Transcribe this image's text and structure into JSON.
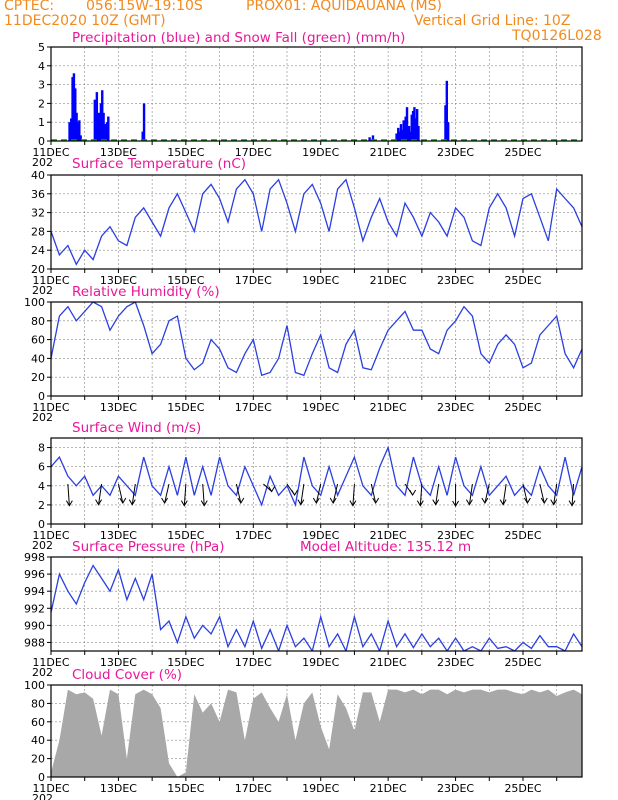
{
  "header": {
    "line1_left": "CPTEC:",
    "line1_coords": "056:15W-19:10S",
    "line1_station": "PROX01: AQUIDAUANA (MS)",
    "line2_left": "11DEC2020 10Z (GMT)",
    "line2_right": "Vertical Grid Line: 10Z",
    "line3_right": "TQ0126L028"
  },
  "colors": {
    "header": "#f28a1e",
    "title": "#e8189a",
    "precip": "#0000ff",
    "snow": "#00a000",
    "line": "#2b3fe0",
    "cloud": "#a8a8a8"
  },
  "x_axis": {
    "labels": [
      "11DEC",
      "13DEC",
      "15DEC",
      "17DEC",
      "19DEC",
      "21DEC",
      "23DEC",
      "25DEC"
    ],
    "cutoff_label": "202"
  },
  "chart_data": [
    {
      "type": "bar",
      "title": "Precipitation (blue) and Snow Fall (green) (mm/h)",
      "ylim": [
        0,
        5
      ],
      "yticks": [
        0,
        1,
        2,
        3,
        4,
        5
      ],
      "series": [
        {
          "name": "Precipitation",
          "x": [
            0.55,
            0.6,
            0.64,
            0.68,
            0.72,
            0.76,
            0.8,
            0.84,
            0.88,
            1.3,
            1.36,
            1.42,
            1.48,
            1.52,
            1.56,
            1.6,
            1.66,
            1.7,
            2.72,
            2.76,
            9.45,
            9.55,
            10.25,
            10.3,
            10.34,
            10.38,
            10.42,
            10.46,
            10.52,
            10.56,
            10.62,
            10.66,
            10.7,
            10.74,
            10.78,
            10.82,
            10.86,
            10.9,
            11.7,
            11.74,
            11.78
          ],
          "values": [
            1.0,
            1.2,
            3.4,
            3.6,
            2.8,
            1.5,
            1.0,
            1.1,
            0.3,
            2.2,
            2.6,
            1.5,
            2.0,
            2.7,
            1.5,
            0.9,
            1.0,
            1.3,
            0.5,
            2.0,
            0.2,
            0.3,
            0.4,
            0.7,
            0.5,
            0.9,
            0.6,
            1.1,
            1.3,
            1.8,
            0.8,
            0.5,
            1.4,
            1.6,
            1.8,
            1.2,
            1.7,
            0.8,
            1.9,
            3.2,
            1.0
          ]
        },
        {
          "name": "Snow Fall",
          "values": [
            0
          ]
        }
      ]
    },
    {
      "type": "line",
      "title": "Surface Temperature (nC)",
      "ylim": [
        20,
        40
      ],
      "yticks": [
        20,
        24,
        28,
        32,
        36,
        40
      ],
      "x": [
        0,
        0.25,
        0.5,
        0.75,
        1.0,
        1.25,
        1.5,
        1.75,
        2.0,
        2.25,
        2.5,
        2.75,
        3.0,
        3.25,
        3.5,
        3.75,
        4.0,
        4.25,
        4.5,
        4.75,
        5.0,
        5.25,
        5.5,
        5.75,
        6.0,
        6.25,
        6.5,
        6.75,
        7.0,
        7.25,
        7.5,
        7.75,
        8.0,
        8.25,
        8.5,
        8.75,
        9.0,
        9.25,
        9.5,
        9.75,
        10.0,
        10.25,
        10.5,
        10.75,
        11.0,
        11.25,
        11.5,
        11.75,
        12.0,
        12.25,
        12.5,
        12.75,
        13.0,
        13.25,
        13.5,
        13.75,
        14.0,
        14.25,
        14.5,
        14.75,
        15.0,
        15.25,
        15.5,
        15.75
      ],
      "values": [
        28,
        23,
        25,
        21,
        24,
        22,
        27,
        29,
        26,
        25,
        31,
        33,
        30,
        27,
        33,
        36,
        32,
        28,
        36,
        38,
        35,
        30,
        37,
        39,
        36,
        28,
        37,
        39,
        34,
        28,
        36,
        38,
        34,
        28,
        37,
        39,
        33,
        26,
        31,
        35,
        30,
        27,
        34,
        31,
        27,
        32,
        30,
        27,
        33,
        31,
        26,
        25,
        33,
        36,
        33,
        27,
        35,
        36,
        31,
        26,
        37,
        35,
        33,
        29
      ],
      "series": [
        {
          "name": ""
        }
      ]
    },
    {
      "type": "line",
      "title": "Relative Humidity (%)",
      "ylim": [
        0,
        100
      ],
      "yticks": [
        0,
        20,
        40,
        60,
        80,
        100
      ],
      "x": [
        0,
        0.25,
        0.5,
        0.75,
        1.0,
        1.25,
        1.5,
        1.75,
        2.0,
        2.25,
        2.5,
        2.75,
        3.0,
        3.25,
        3.5,
        3.75,
        4.0,
        4.25,
        4.5,
        4.75,
        5.0,
        5.25,
        5.5,
        5.75,
        6.0,
        6.25,
        6.5,
        6.75,
        7.0,
        7.25,
        7.5,
        7.75,
        8.0,
        8.25,
        8.5,
        8.75,
        9.0,
        9.25,
        9.5,
        9.75,
        10.0,
        10.25,
        10.5,
        10.75,
        11.0,
        11.25,
        11.5,
        11.75,
        12.0,
        12.25,
        12.5,
        12.75,
        13.0,
        13.25,
        13.5,
        13.75,
        14.0,
        14.25,
        14.5,
        14.75,
        15.0,
        15.25,
        15.5,
        15.75
      ],
      "values": [
        40,
        85,
        95,
        80,
        90,
        100,
        95,
        70,
        85,
        95,
        100,
        75,
        45,
        55,
        80,
        85,
        40,
        28,
        35,
        60,
        50,
        30,
        25,
        45,
        60,
        22,
        25,
        40,
        75,
        25,
        22,
        45,
        65,
        30,
        25,
        55,
        70,
        30,
        28,
        50,
        70,
        80,
        90,
        70,
        70,
        50,
        45,
        70,
        80,
        95,
        85,
        45,
        35,
        55,
        65,
        55,
        30,
        35,
        65,
        75,
        85,
        45,
        30,
        50
      ],
      "series": [
        {
          "name": ""
        }
      ]
    },
    {
      "type": "line",
      "title": "Surface Wind (m/s)",
      "ylim": [
        0,
        9
      ],
      "yticks": [
        0,
        2,
        4,
        6,
        8
      ],
      "x": [
        0,
        0.25,
        0.5,
        0.75,
        1.0,
        1.25,
        1.5,
        1.75,
        2.0,
        2.25,
        2.5,
        2.75,
        3.0,
        3.25,
        3.5,
        3.75,
        4.0,
        4.25,
        4.5,
        4.75,
        5.0,
        5.25,
        5.5,
        5.75,
        6.0,
        6.25,
        6.5,
        6.75,
        7.0,
        7.25,
        7.5,
        7.75,
        8.0,
        8.25,
        8.5,
        8.75,
        9.0,
        9.25,
        9.5,
        9.75,
        10.0,
        10.25,
        10.5,
        10.75,
        11.0,
        11.25,
        11.5,
        11.75,
        12.0,
        12.25,
        12.5,
        12.75,
        13.0,
        13.25,
        13.5,
        13.75,
        14.0,
        14.25,
        14.5,
        14.75,
        15.0,
        15.25,
        15.5,
        15.75
      ],
      "values": [
        6,
        7,
        5,
        4,
        5,
        3,
        4,
        3,
        5,
        4,
        3,
        7,
        4,
        3,
        6,
        3,
        7,
        3,
        6,
        3,
        7,
        4,
        3,
        6,
        4,
        2,
        5,
        3,
        4,
        2,
        7,
        4,
        3,
        6,
        3,
        5,
        7,
        4,
        3,
        6,
        8,
        4,
        3,
        7,
        4,
        3,
        6,
        3,
        7,
        4,
        3,
        6,
        3,
        4,
        5,
        3,
        4,
        3,
        6,
        4,
        3,
        7,
        3,
        6
      ],
      "arrows": {
        "x": [
          0.5,
          1.5,
          2.0,
          2.5,
          3.5,
          4.0,
          4.5,
          5.5,
          6.3,
          7.0,
          7.5,
          8.0,
          8.5,
          9.0,
          9.5,
          10.5,
          11.0,
          11.5,
          12.0,
          12.5,
          13.0,
          13.5,
          14.0,
          14.5,
          15.0,
          15.5
        ],
        "dir_deg": [
          350,
          20,
          330,
          20,
          30,
          10,
          350,
          330,
          290,
          300,
          20,
          30,
          30,
          10,
          330,
          300,
          10,
          20,
          0,
          20,
          30,
          20,
          330,
          330,
          20,
          10
        ]
      },
      "series": [
        {
          "name": ""
        }
      ]
    },
    {
      "type": "line",
      "title": "Surface Pressure (hPa)",
      "model_altitude_label": "Model Altitude: 135.12 m",
      "ylim": [
        987,
        998
      ],
      "yticks": [
        988,
        990,
        992,
        994,
        996,
        998
      ],
      "x": [
        0,
        0.25,
        0.5,
        0.75,
        1.0,
        1.25,
        1.5,
        1.75,
        2.0,
        2.25,
        2.5,
        2.75,
        3.0,
        3.25,
        3.5,
        3.75,
        4.0,
        4.25,
        4.5,
        4.75,
        5.0,
        5.25,
        5.5,
        5.75,
        6.0,
        6.25,
        6.5,
        6.75,
        7.0,
        7.25,
        7.5,
        7.75,
        8.0,
        8.25,
        8.5,
        8.75,
        9.0,
        9.25,
        9.5,
        9.75,
        10.0,
        10.25,
        10.5,
        10.75,
        11.0,
        11.25,
        11.5,
        11.75,
        12.0,
        12.25,
        12.5,
        12.75,
        13.0,
        13.25,
        13.5,
        13.75,
        14.0,
        14.25,
        14.5,
        14.75,
        15.0,
        15.25,
        15.5,
        15.75
      ],
      "values": [
        991.5,
        996,
        994,
        992.5,
        995,
        997,
        995.5,
        994,
        996.5,
        993,
        995.5,
        993,
        996,
        989.5,
        990.5,
        988,
        991,
        988.5,
        990,
        989,
        991,
        987.5,
        989.5,
        987.5,
        990.5,
        987.3,
        989.5,
        987,
        990,
        987.5,
        988.5,
        987,
        991,
        987.5,
        989,
        987,
        991,
        987.5,
        989,
        987,
        990.5,
        987.5,
        989,
        987.4,
        989,
        987.5,
        988.5,
        987,
        988.5,
        987,
        987.5,
        987,
        988.5,
        987.3,
        987.5,
        987,
        988,
        987.3,
        988.8,
        987.5,
        987.5,
        987,
        989,
        987.5
      ],
      "series": [
        {
          "name": ""
        }
      ]
    },
    {
      "type": "area",
      "title": "Cloud Cover (%)",
      "ylim": [
        0,
        100
      ],
      "yticks": [
        0,
        20,
        40,
        60,
        80,
        100
      ],
      "x": [
        0,
        0.25,
        0.5,
        0.75,
        1.0,
        1.25,
        1.5,
        1.75,
        2.0,
        2.25,
        2.5,
        2.75,
        3.0,
        3.25,
        3.5,
        3.75,
        4.0,
        4.25,
        4.5,
        4.75,
        5.0,
        5.25,
        5.5,
        5.75,
        6.0,
        6.25,
        6.5,
        6.75,
        7.0,
        7.25,
        7.5,
        7.75,
        8.0,
        8.25,
        8.5,
        8.75,
        9.0,
        9.25,
        9.5,
        9.75,
        10.0,
        10.25,
        10.5,
        10.75,
        11.0,
        11.25,
        11.5,
        11.75,
        12.0,
        12.25,
        12.5,
        12.75,
        13.0,
        13.25,
        13.5,
        13.75,
        14.0,
        14.25,
        14.5,
        14.75,
        15.0,
        15.25,
        15.5,
        15.75
      ],
      "values": [
        5,
        40,
        95,
        90,
        92,
        85,
        45,
        95,
        90,
        20,
        90,
        95,
        90,
        75,
        15,
        0,
        5,
        90,
        70,
        80,
        60,
        95,
        92,
        40,
        85,
        92,
        75,
        60,
        90,
        40,
        80,
        92,
        55,
        30,
        90,
        75,
        50,
        92,
        92,
        60,
        95,
        95,
        92,
        95,
        90,
        95,
        95,
        90,
        95,
        92,
        95,
        95,
        92,
        95,
        95,
        92,
        90,
        95,
        92,
        95,
        88,
        92,
        95,
        90
      ],
      "series": [
        {
          "name": ""
        }
      ]
    }
  ]
}
